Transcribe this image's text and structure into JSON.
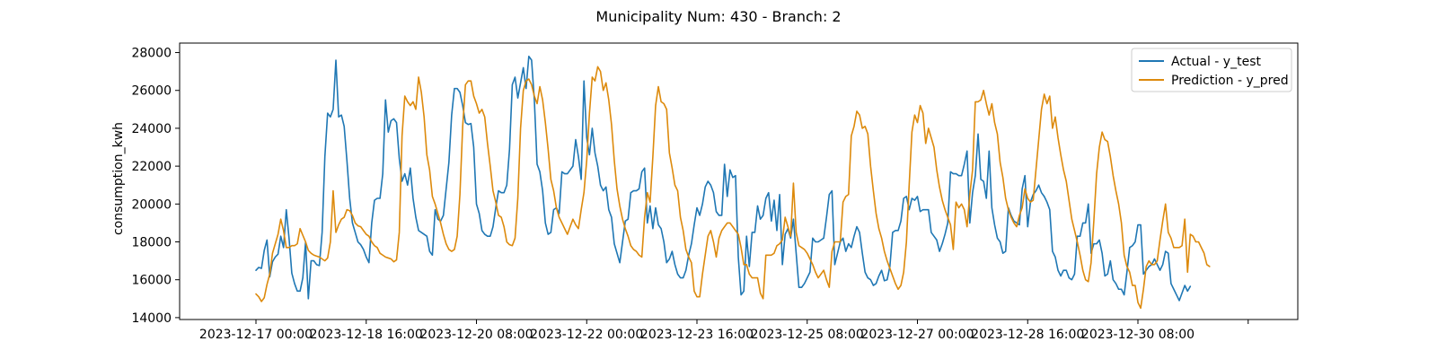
{
  "chart_data": {
    "type": "line",
    "title": "Municipality Num: 430 - Branch: 2",
    "xlabel": "",
    "ylabel": "consumption_kwh",
    "ylim": [
      13900,
      28500
    ],
    "xlim_hours": [
      -27.7,
      378
    ],
    "grid": false,
    "legend_position": "top-right",
    "y_ticks": [
      14000,
      16000,
      18000,
      20000,
      22000,
      24000,
      26000,
      28000
    ],
    "x_tick_labels": [
      "2023-12-17 00:00",
      "2023-12-18 16:00",
      "2023-12-20 08:00",
      "2023-12-22 00:00",
      "2023-12-23 16:00",
      "2023-12-25 08:00",
      "2023-12-27 00:00",
      "2023-12-28 16:00",
      "2023-12-30 08:00",
      ""
    ],
    "x_tick_hours": [
      0,
      40,
      80,
      120,
      160,
      200,
      240,
      280,
      320,
      360
    ],
    "x_start": "2023-12-17 00:00",
    "x_step_hours": 1,
    "series": [
      {
        "name": "Actual - y_test",
        "color": "#1f77b4",
        "x_start_hour": 0,
        "values": [
          16500,
          16650,
          16600,
          17550,
          18100,
          16150,
          16950,
          17200,
          17350,
          18300,
          17700,
          19700,
          18200,
          16350,
          15800,
          15400,
          15400,
          16100,
          18000,
          15000,
          17000,
          17000,
          16800,
          16750,
          18500,
          22500,
          24800,
          24600,
          25000,
          27600,
          24600,
          24700,
          24100,
          22300,
          20300,
          19000,
          18500,
          18000,
          17850,
          17600,
          17200,
          16900,
          19000,
          20200,
          20300,
          20300,
          21600,
          25500,
          23800,
          24400,
          24500,
          24300,
          22400,
          21200,
          21600,
          21000,
          21900,
          20300,
          19300,
          18600,
          18500,
          18400,
          18300,
          17500,
          17300,
          19700,
          19200,
          19100,
          19400,
          20800,
          22200,
          24700,
          26100,
          26100,
          25900,
          25200,
          24300,
          24200,
          24250,
          23000,
          20000,
          19500,
          18600,
          18400,
          18300,
          18300,
          18800,
          19800,
          20700,
          20600,
          20600,
          21000,
          22900,
          26300,
          26700,
          25600,
          26400,
          27200,
          26100,
          27800,
          27600,
          25500,
          22100,
          21700,
          20700,
          19000,
          18400,
          18500,
          19700,
          19800,
          19500,
          21700,
          21600,
          21600,
          21800,
          22000,
          23400,
          22500,
          21300,
          26500,
          23500,
          22600,
          24000,
          22700,
          22000,
          21000,
          20700,
          20900,
          19700,
          19300,
          17900,
          17400,
          16900,
          18000,
          19100,
          19200,
          20600,
          20700,
          20700,
          20800,
          21700,
          21900,
          19000,
          19900,
          18700,
          19800,
          18900,
          18700,
          18000,
          16900,
          17100,
          17500,
          16800,
          16300,
          16100,
          16100,
          16500,
          17300,
          17900,
          18900,
          19800,
          19400,
          20000,
          20900,
          21200,
          21000,
          20600,
          19600,
          19400,
          19400,
          22100,
          20400,
          21800,
          21400,
          21500,
          17200,
          15200,
          15400,
          18300,
          16700,
          18500,
          18500,
          19900,
          19200,
          19400,
          20300,
          20600,
          19100,
          20200,
          18600,
          20500,
          16800,
          18400,
          18700,
          18200,
          19200,
          17400,
          15600,
          15600,
          15800,
          16100,
          16400,
          18200,
          18000,
          18000,
          18100,
          18200,
          19300,
          20500,
          20700,
          16800,
          17400,
          18000,
          18200,
          17500,
          17900,
          17700,
          18300,
          18800,
          18500,
          17400,
          16400,
          16100,
          16000,
          15700,
          15800,
          16200,
          16500,
          15950,
          16000,
          16700,
          18500,
          18600,
          18600,
          19100,
          20300,
          20400,
          19700,
          20300,
          20200,
          20400,
          19600,
          19700,
          19700,
          19700,
          18500,
          18300,
          18100,
          17500,
          17900,
          18400,
          19000,
          21700,
          21600,
          21600,
          21500,
          21500,
          22100,
          22800,
          19000,
          20600,
          21500,
          23700,
          21300,
          21200,
          20300,
          22800,
          19800,
          18900,
          18200,
          18000,
          17400,
          17500,
          19800,
          19400,
          19100,
          19000,
          18900,
          20800,
          21500,
          18800,
          20100,
          20500,
          20700,
          21000,
          20600,
          20400,
          20100,
          19700,
          17500,
          17200,
          16500,
          16200,
          16500,
          16500,
          16100,
          16000,
          16300,
          18300,
          18300,
          19000,
          19000,
          20000,
          17400,
          17900,
          17900,
          18100,
          17400,
          16200,
          16300,
          17000,
          16000,
          15800,
          15500,
          15500,
          15200,
          16400,
          17700,
          17800,
          18000,
          18900,
          18900,
          16300,
          16500,
          16700,
          16800,
          17100,
          16800,
          16500,
          16800,
          17500,
          17400,
          15800,
          15500,
          15200,
          14900,
          15300,
          15700,
          15400,
          15650
        ]
      },
      {
        "name": "Prediction - y_pred",
        "color": "#dd8a0c",
        "x_start_hour": 0,
        "values": [
          15250,
          15100,
          14850,
          15050,
          15750,
          16300,
          17400,
          17900,
          18400,
          19200,
          18600,
          17700,
          17700,
          17800,
          17800,
          17900,
          18700,
          18350,
          18000,
          17550,
          17400,
          17300,
          17250,
          17200,
          17100,
          17000,
          17150,
          18000,
          20700,
          18500,
          18900,
          19200,
          19300,
          19700,
          19650,
          19400,
          19000,
          18850,
          18800,
          18600,
          18400,
          18300,
          18000,
          17800,
          17700,
          17400,
          17300,
          17200,
          17150,
          17100,
          16950,
          17050,
          18500,
          23600,
          25700,
          25400,
          25200,
          25400,
          25000,
          26700,
          25900,
          24600,
          22600,
          21800,
          20400,
          20000,
          19500,
          19000,
          18400,
          17900,
          17600,
          17500,
          17600,
          18300,
          20500,
          24100,
          26300,
          26500,
          26500,
          25700,
          25300,
          24800,
          25000,
          24600,
          23200,
          22000,
          20700,
          20100,
          19400,
          19300,
          18800,
          18000,
          17850,
          17800,
          18200,
          20300,
          24000,
          26000,
          26500,
          26600,
          26300,
          25700,
          25300,
          26200,
          25500,
          24300,
          22900,
          21300,
          20700,
          19800,
          19300,
          19000,
          18700,
          18400,
          18800,
          19200,
          18900,
          18700,
          19700,
          20600,
          22300,
          24800,
          26700,
          26500,
          27250,
          27000,
          26000,
          26400,
          25500,
          24200,
          22300,
          20800,
          19900,
          19200,
          18700,
          18300,
          17800,
          17600,
          17500,
          17300,
          17200,
          19300,
          20600,
          20100,
          22500,
          25200,
          26200,
          25400,
          25300,
          25000,
          22700,
          21900,
          21000,
          20700,
          19300,
          18600,
          17600,
          17200,
          16900,
          15400,
          15100,
          15100,
          16300,
          17300,
          18300,
          18600,
          18000,
          17200,
          18200,
          18600,
          18800,
          19000,
          19000,
          18800,
          18600,
          18400,
          17700,
          16800,
          16800,
          16300,
          16100,
          16100,
          16100,
          15300,
          15000,
          17300,
          17300,
          17300,
          17400,
          17800,
          17900,
          18100,
          19300,
          18800,
          18300,
          21100,
          18500,
          17800,
          17700,
          17600,
          17400,
          17100,
          16800,
          16400,
          16100,
          16300,
          16500,
          16000,
          15600,
          17500,
          18000,
          18000,
          18000,
          20100,
          20400,
          20500,
          23600,
          24100,
          24900,
          24700,
          24000,
          24100,
          23700,
          22000,
          20700,
          19500,
          18700,
          18200,
          17500,
          17000,
          16600,
          16200,
          15800,
          15500,
          15700,
          16400,
          18000,
          21000,
          23800,
          24700,
          24300,
          25200,
          24800,
          23200,
          24000,
          23500,
          23000,
          21800,
          20900,
          20200,
          19700,
          19300,
          18900,
          17600,
          20100,
          19800,
          20000,
          19700,
          18800,
          20500,
          21800,
          25400,
          25400,
          25500,
          26000,
          25300,
          24700,
          25300,
          24300,
          23700,
          22200,
          21400,
          20300,
          19700,
          19300,
          19000,
          18800,
          19400,
          19800,
          20800,
          20300,
          20100,
          20200,
          21800,
          23400,
          25000,
          25800,
          25300,
          25700,
          24000,
          24600,
          23500,
          22600,
          21800,
          21200,
          20200,
          19200,
          18600,
          18000,
          17300,
          16500,
          16000,
          15900,
          16900,
          19100,
          21600,
          23000,
          23800,
          23400,
          23300,
          22500,
          21500,
          20700,
          20000,
          19000,
          17300,
          16700,
          16400,
          15700,
          15700,
          14800,
          14500,
          15500,
          16700,
          17000,
          16800,
          16800,
          17000,
          18100,
          19100,
          20000,
          18500,
          18200,
          17700,
          17700,
          17700,
          17800,
          19200,
          16400,
          18400,
          18300,
          18000,
          18000,
          17700,
          17400,
          16800,
          16700
        ]
      }
    ]
  }
}
